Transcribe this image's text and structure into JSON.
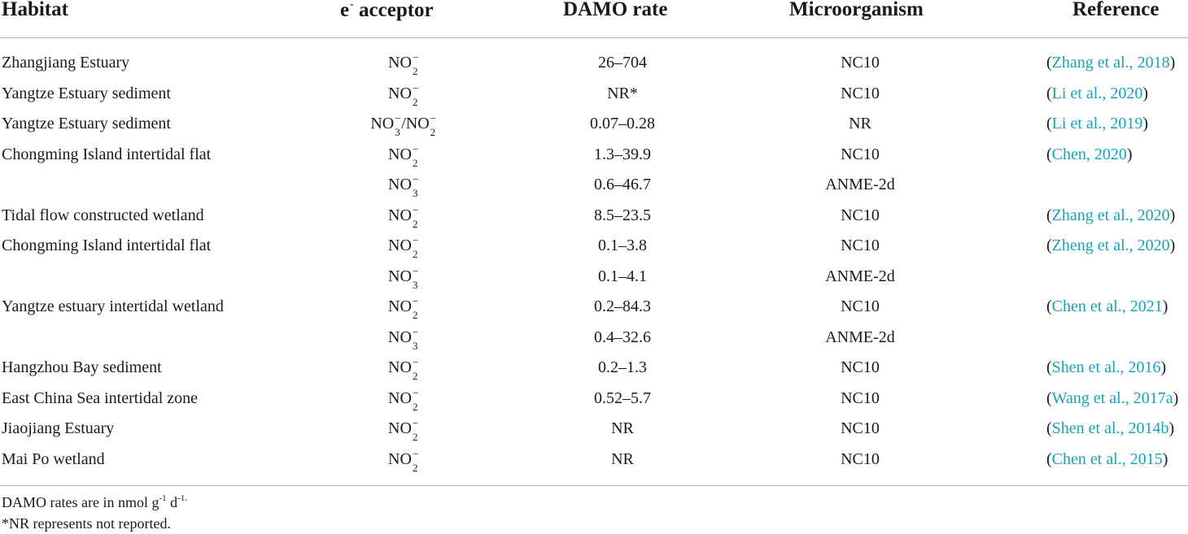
{
  "headers": {
    "habitat": "Habitat",
    "acceptor_main": "e",
    "acceptor_sup": "-",
    "acceptor_rest": "acceptor",
    "rate": "DAMO rate",
    "microorganism": "Microorganism",
    "reference": "Reference"
  },
  "rows": [
    {
      "habitat": "Zhangjiang Estuary",
      "acceptor": "NO2-",
      "rate": "26–704",
      "micro": "NC10",
      "ref_open": "(",
      "ref": "Zhang et al., 2018",
      "ref_close": ")"
    },
    {
      "habitat": "Yangtze Estuary sediment",
      "acceptor": "NO2-",
      "rate": "NR*",
      "micro": "NC10",
      "ref_open": "(",
      "ref": "Li et al., 2020",
      "ref_close": ")"
    },
    {
      "habitat": "Yangtze Estuary sediment",
      "acceptor": "NO3-/NO2-",
      "rate": "0.07–0.28",
      "micro": "NR",
      "ref_open": "(",
      "ref": "Li et al., 2019",
      "ref_close": ")"
    },
    {
      "habitat": "Chongming Island intertidal flat",
      "acceptor": "NO2-",
      "rate": "1.3–39.9",
      "micro": "NC10",
      "ref_open": "(",
      "ref": "Chen, 2020",
      "ref_close": ")"
    },
    {
      "habitat": "",
      "acceptor": "NO3-",
      "rate": "0.6–46.7",
      "micro": "ANME-2d",
      "ref_open": "",
      "ref": "",
      "ref_close": ""
    },
    {
      "habitat": "Tidal flow constructed wetland",
      "acceptor": "NO2-",
      "rate": "8.5–23.5",
      "micro": "NC10",
      "ref_open": "(",
      "ref": "Zhang et al., 2020",
      "ref_close": ")"
    },
    {
      "habitat": "Chongming Island intertidal flat",
      "acceptor": "NO2-",
      "rate": "0.1–3.8",
      "micro": "NC10",
      "ref_open": "(",
      "ref": "Zheng et al., 2020",
      "ref_close": ")"
    },
    {
      "habitat": "",
      "acceptor": "NO3-",
      "rate": "0.1–4.1",
      "micro": "ANME-2d",
      "ref_open": "",
      "ref": "",
      "ref_close": ""
    },
    {
      "habitat": "Yangtze estuary intertidal wetland",
      "acceptor": "NO2-",
      "rate": "0.2–84.3",
      "micro": "NC10",
      "ref_open": "(",
      "ref": "Chen et al., 2021",
      "ref_close": ")"
    },
    {
      "habitat": "",
      "acceptor": "NO3-",
      "rate": "0.4–32.6",
      "micro": "ANME-2d",
      "ref_open": "",
      "ref": "",
      "ref_close": ""
    },
    {
      "habitat": "Hangzhou Bay sediment",
      "acceptor": "NO2-",
      "rate": "0.2–1.3",
      "micro": "NC10",
      "ref_open": "(",
      "ref": "Shen et al., 2016",
      "ref_close": ")"
    },
    {
      "habitat": "East China Sea intertidal zone",
      "acceptor": "NO2-",
      "rate": "0.52–5.7",
      "micro": "NC10",
      "ref_open": "(",
      "ref": "Wang et al., 2017a",
      "ref_close": ")"
    },
    {
      "habitat": "Jiaojiang Estuary",
      "acceptor": "NO2-",
      "rate": "NR",
      "micro": "NC10",
      "ref_open": "(",
      "ref": "Shen et al., 2014b",
      "ref_close": ")"
    },
    {
      "habitat": "Mai Po wetland",
      "acceptor": "NO2-",
      "rate": "NR",
      "micro": "NC10",
      "ref_open": "(",
      "ref": "Chen et al., 2015",
      "ref_close": ")"
    }
  ],
  "footnotes": {
    "units_pre": "DAMO rates are in nmol g",
    "units_sup1": "-1",
    "units_mid": " d",
    "units_sup2": "-1.",
    "nr_note": "*NR represents not reported."
  },
  "colors": {
    "link": "#17a2b8",
    "rule": "#b5b5b5",
    "text": "#1a1a1a"
  }
}
